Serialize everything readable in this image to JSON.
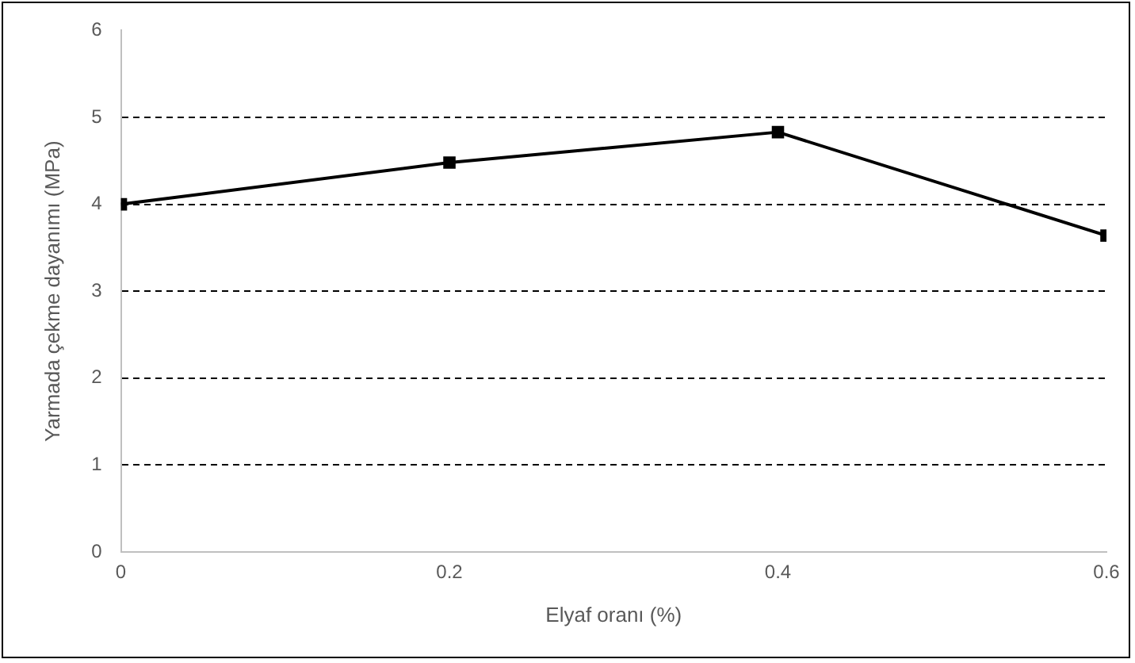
{
  "chart_data": {
    "type": "line",
    "xlabel": "Elyaf oranı (%)",
    "ylabel": "Yarmada çekme dayanımı (MPa)",
    "x": [
      0,
      0.2,
      0.4,
      0.6
    ],
    "series": [
      {
        "color": "#000000",
        "values": [
          4.0,
          4.48,
          4.83,
          3.64
        ]
      }
    ],
    "xlim": [
      0,
      0.6
    ],
    "xticks": [
      0,
      0.2,
      0.4,
      0.6
    ],
    "ylim": [
      0,
      6
    ],
    "yticks": [
      0,
      1,
      2,
      3,
      4,
      5,
      6
    ],
    "grid": "y",
    "line_style": "solid",
    "marker": "square",
    "legend": false
  }
}
